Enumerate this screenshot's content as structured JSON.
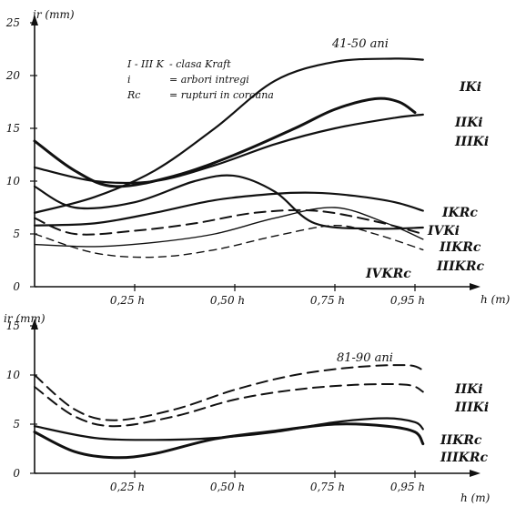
{
  "chart_data": [
    {
      "type": "line",
      "title": "41-50 ani",
      "ylabel": "ir (mm)",
      "xlabel": "h (m)",
      "xticks": [
        "0,25 h",
        "0,50 h",
        "0,75 h",
        "0,95 h"
      ],
      "xtick_values": [
        0.25,
        0.5,
        0.75,
        0.95
      ],
      "yticks": [
        "0",
        "5",
        "10",
        "15",
        "20",
        "25"
      ],
      "ylim": [
        0,
        25
      ],
      "xlim": [
        0,
        1.05
      ],
      "legend": [
        {
          "key": "I - III K",
          "text": "- clasa Kraft"
        },
        {
          "key": "i",
          "text": "= arbori intregi"
        },
        {
          "key": "Rc",
          "text": "= rupturi in coroana"
        }
      ],
      "series": [
        {
          "name": "IKi",
          "style": "s-solid",
          "x": [
            0.0,
            0.15,
            0.3,
            0.45,
            0.6,
            0.75,
            0.9,
            0.97
          ],
          "y": [
            7.0,
            8.5,
            11.0,
            15.0,
            19.5,
            21.3,
            21.6,
            21.5
          ]
        },
        {
          "name": "IIKi",
          "style": "s-bold",
          "x": [
            0.0,
            0.1,
            0.2,
            0.35,
            0.5,
            0.65,
            0.75,
            0.85,
            0.91,
            0.95
          ],
          "y": [
            13.8,
            11.0,
            9.5,
            10.5,
            12.5,
            15.0,
            16.8,
            17.8,
            17.5,
            16.5
          ]
        },
        {
          "name": "IIIKi",
          "style": "s-solid",
          "x": [
            0.0,
            0.15,
            0.3,
            0.45,
            0.6,
            0.75,
            0.9,
            0.97
          ],
          "y": [
            11.3,
            10.0,
            10.0,
            11.5,
            13.5,
            15.0,
            16.0,
            16.3
          ]
        },
        {
          "name": "IKRc",
          "style": "s-solid",
          "x": [
            0.0,
            0.15,
            0.3,
            0.45,
            0.6,
            0.7,
            0.8,
            0.9,
            0.97
          ],
          "y": [
            5.8,
            6.0,
            7.0,
            8.2,
            8.8,
            8.9,
            8.6,
            8.0,
            7.2
          ]
        },
        {
          "name": "IVKi",
          "style": "s-solid",
          "x": [
            0.0,
            0.1,
            0.25,
            0.4,
            0.5,
            0.6,
            0.7,
            0.85,
            0.97
          ],
          "y": [
            9.5,
            7.5,
            8.0,
            10.0,
            10.5,
            9.0,
            6.0,
            5.5,
            5.6
          ]
        },
        {
          "name": "IIKRc",
          "style": "s-dashed",
          "x": [
            0.0,
            0.1,
            0.25,
            0.4,
            0.55,
            0.7,
            0.85,
            0.97
          ],
          "y": [
            6.5,
            5.0,
            5.3,
            6.0,
            7.0,
            7.2,
            6.2,
            5.0
          ]
        },
        {
          "name": "IIIKRc",
          "style": "s-dashed-thin",
          "x": [
            0.0,
            0.15,
            0.3,
            0.45,
            0.6,
            0.75,
            0.85,
            0.97
          ],
          "y": [
            5.0,
            3.2,
            2.8,
            3.5,
            4.8,
            5.8,
            5.0,
            3.5
          ]
        },
        {
          "name": "IVKRc",
          "style": "s-thin",
          "x": [
            0.0,
            0.15,
            0.3,
            0.45,
            0.6,
            0.75,
            0.88,
            0.97
          ],
          "y": [
            4.0,
            3.8,
            4.2,
            5.0,
            6.5,
            7.5,
            6.0,
            4.5
          ]
        }
      ],
      "series_labels": [
        "IKi",
        "IIKi",
        "IIIKi",
        "IKRc",
        "IVKi",
        "IIKRc",
        "IIIKRc",
        "IVKRc"
      ]
    },
    {
      "type": "line",
      "title": "81-90 ani",
      "ylabel": "ir (mm)",
      "xlabel": "h (m)",
      "xticks": [
        "0,25 h",
        "0,50 h",
        "0,75 h",
        "0,95 h"
      ],
      "xtick_values": [
        0.25,
        0.5,
        0.75,
        0.95
      ],
      "yticks": [
        "0",
        "5",
        "10",
        "15"
      ],
      "ylim": [
        0,
        15
      ],
      "xlim": [
        0,
        1.05
      ],
      "series": [
        {
          "name": "IIKi",
          "style": "s-dashed",
          "x": [
            0.0,
            0.1,
            0.2,
            0.35,
            0.5,
            0.65,
            0.8,
            0.93,
            0.97
          ],
          "y": [
            10.0,
            6.5,
            5.4,
            6.5,
            8.5,
            10.0,
            10.8,
            11.0,
            10.5
          ]
        },
        {
          "name": "IIIKi",
          "style": "s-dashed",
          "x": [
            0.0,
            0.1,
            0.2,
            0.35,
            0.5,
            0.65,
            0.8,
            0.93,
            0.97
          ],
          "y": [
            8.8,
            5.8,
            4.8,
            5.8,
            7.5,
            8.5,
            9.0,
            9.0,
            8.3
          ]
        },
        {
          "name": "IIKRc",
          "style": "s-solid",
          "x": [
            0.0,
            0.15,
            0.3,
            0.45,
            0.6,
            0.75,
            0.88,
            0.95,
            0.97
          ],
          "y": [
            4.8,
            3.6,
            3.4,
            3.6,
            4.2,
            5.2,
            5.6,
            5.2,
            4.5
          ]
        },
        {
          "name": "IIIKRc",
          "style": "s-bold",
          "x": [
            0.0,
            0.1,
            0.2,
            0.3,
            0.45,
            0.6,
            0.75,
            0.88,
            0.95,
            0.97
          ],
          "y": [
            4.2,
            2.2,
            1.6,
            2.0,
            3.5,
            4.3,
            5.0,
            4.8,
            4.2,
            3.0
          ]
        }
      ],
      "series_labels": [
        "IIKi",
        "IIIKi",
        "IIKRc",
        "IIIKRc"
      ]
    }
  ]
}
